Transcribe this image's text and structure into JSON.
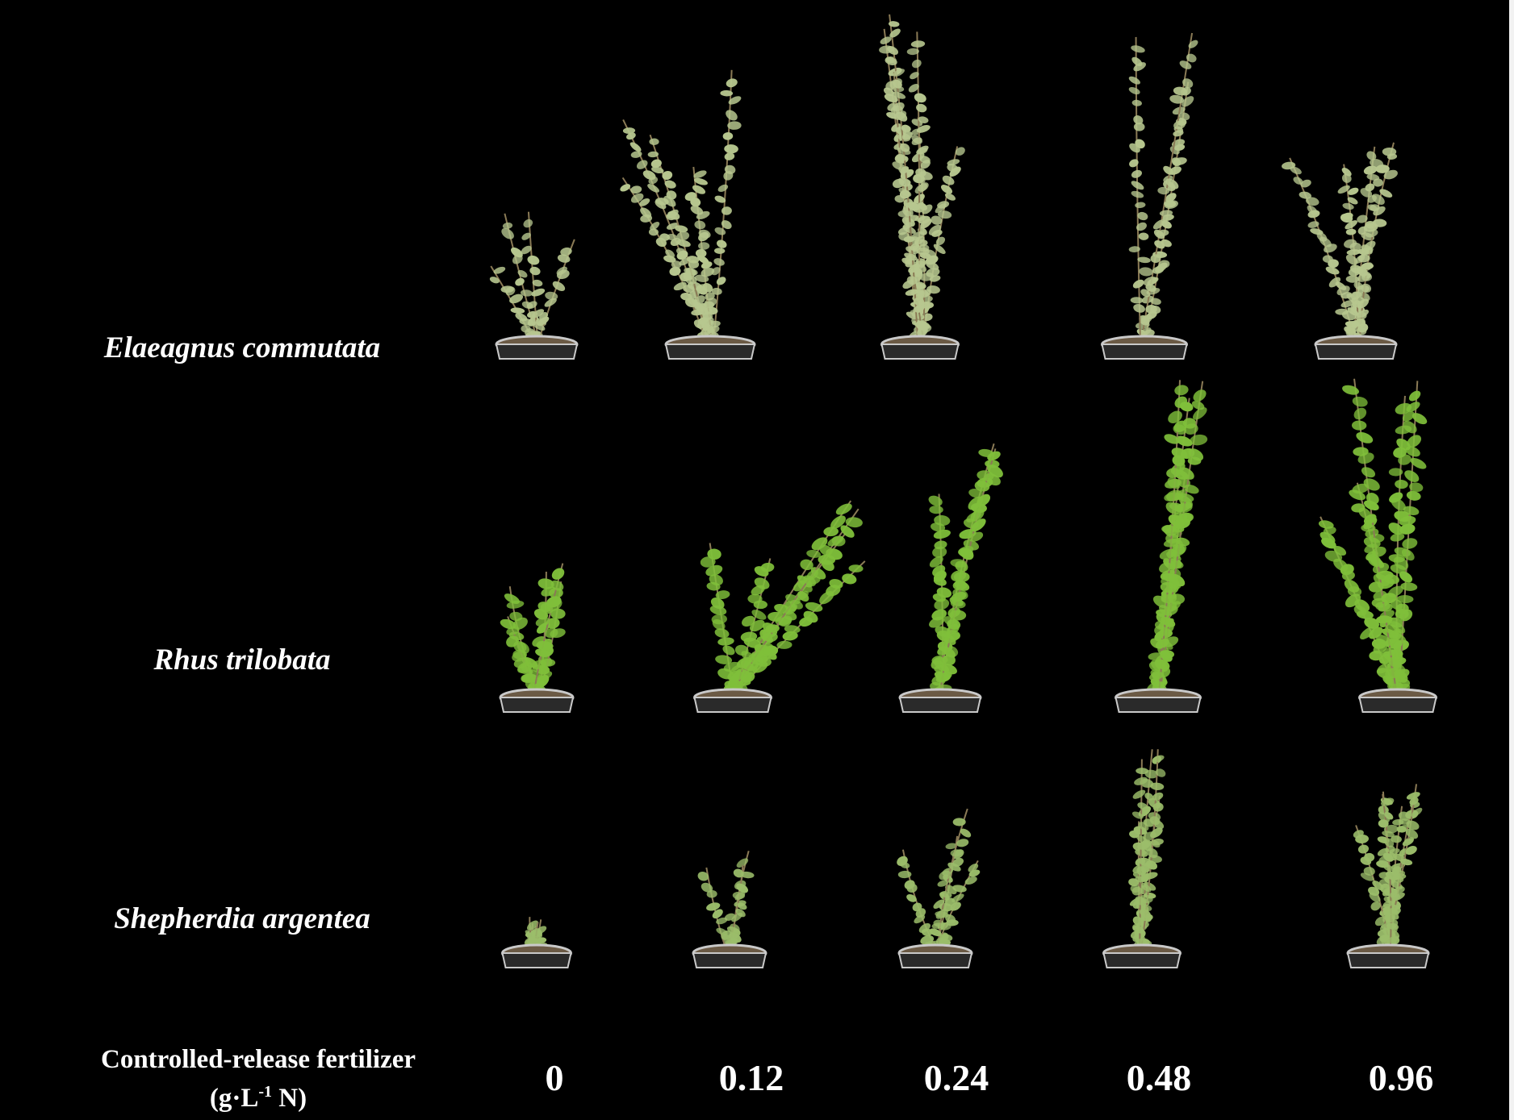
{
  "species": [
    "Elaeagnus commutata",
    "Rhus trilobata",
    "Shepherdia argentea"
  ],
  "fertilizer_rates": [
    "0",
    "0.12",
    "0.24",
    "0.48",
    "0.96"
  ],
  "axis_title": {
    "line1": "Controlled-release fertilizer",
    "unit_prefix": "(g·L",
    "unit_exponent": "-1",
    "unit_suffix": " N)"
  },
  "colors": {
    "background": "#000000",
    "text": "#ffffff",
    "elaeagnus_foliage": "#b7c78f",
    "rhus_foliage": "#7fbf3a",
    "shepherdia_foliage": "#9bbd6a",
    "pot": "#c9c9c9",
    "soil": "#6b5a45"
  }
}
